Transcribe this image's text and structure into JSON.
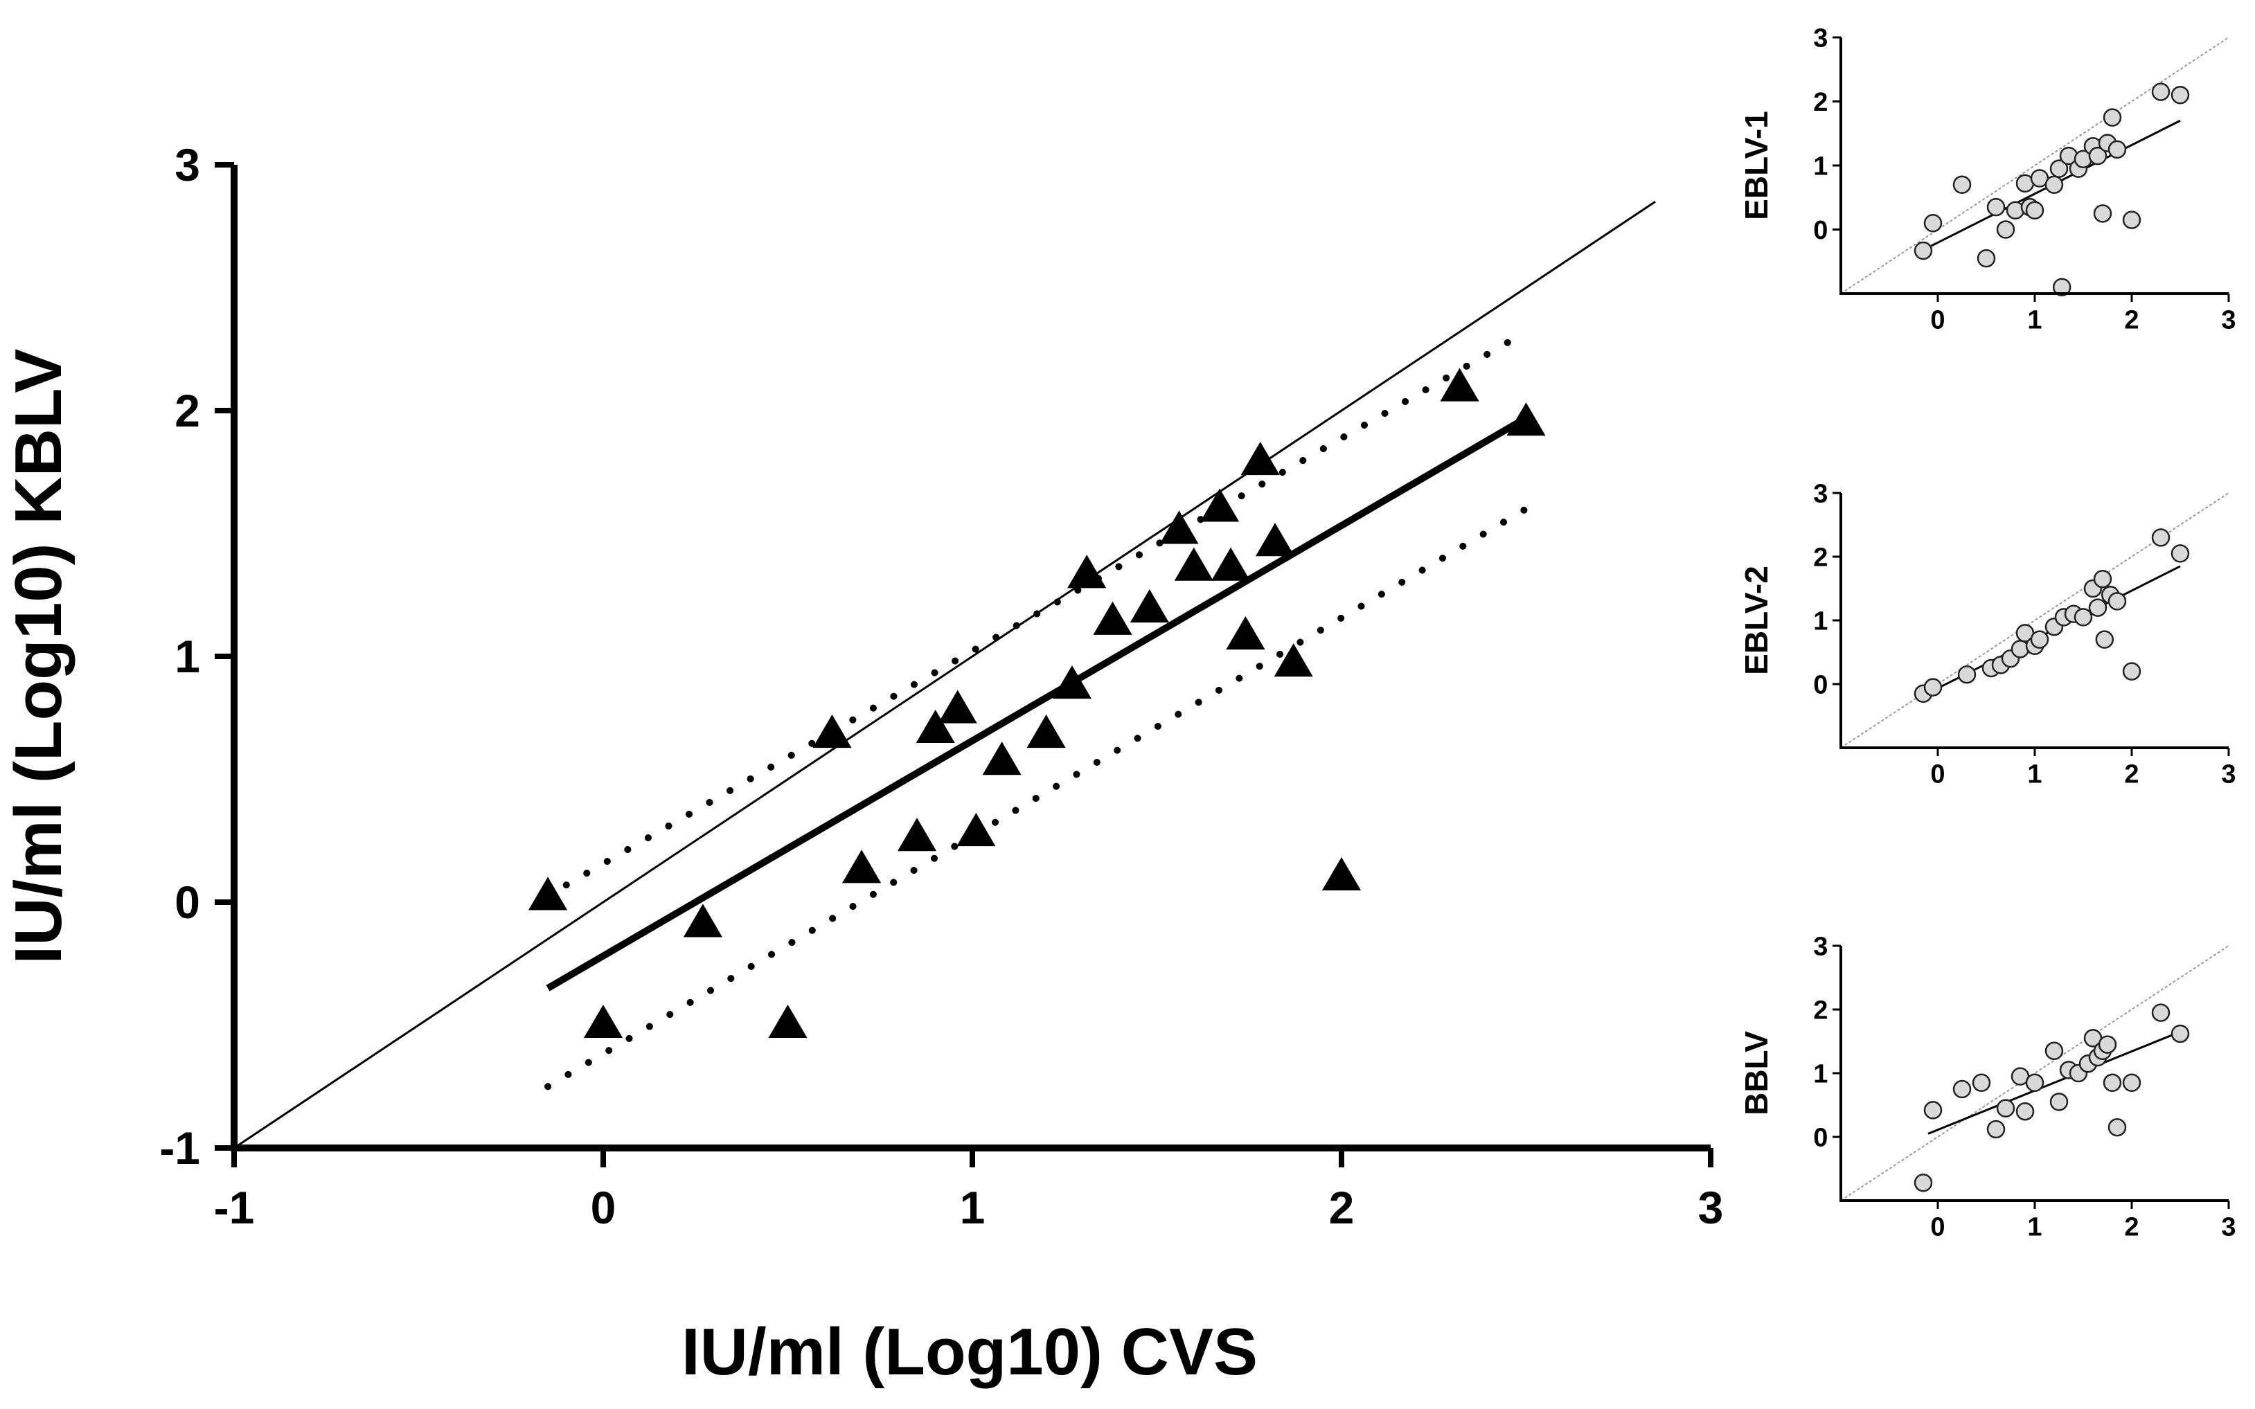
{
  "chart_data": [
    {
      "type": "scatter",
      "panel": "main",
      "xlabel": "IU/ml (Log10) CVS",
      "ylabel": "IU/ml (Log10) KBLV",
      "xlim": [
        -1,
        3
      ],
      "ylim": [
        -1,
        3
      ],
      "xticks": [
        "-1",
        "0",
        "1",
        "2",
        "3"
      ],
      "yticks": [
        "-1",
        "0",
        "1",
        "2",
        "3"
      ],
      "marker": "triangle",
      "identity_line": [
        [
          -1,
          -1
        ],
        [
          2.85,
          2.85
        ]
      ],
      "regression_line": [
        [
          -0.15,
          -0.35
        ],
        [
          2.5,
          1.97
        ]
      ],
      "confidence_upper": [
        [
          -0.1,
          0.07
        ],
        [
          2.5,
          2.32
        ]
      ],
      "confidence_lower": [
        [
          -0.15,
          -0.75
        ],
        [
          2.5,
          1.6
        ]
      ],
      "points": [
        [
          -0.15,
          0.03
        ],
        [
          0.0,
          -0.49
        ],
        [
          0.27,
          -0.08
        ],
        [
          0.5,
          -0.49
        ],
        [
          0.62,
          0.69
        ],
        [
          0.7,
          0.14
        ],
        [
          0.85,
          0.27
        ],
        [
          0.9,
          0.71
        ],
        [
          0.96,
          0.79
        ],
        [
          1.01,
          0.29
        ],
        [
          1.08,
          0.58
        ],
        [
          1.2,
          0.69
        ],
        [
          1.27,
          0.89
        ],
        [
          1.31,
          1.34
        ],
        [
          1.38,
          1.15
        ],
        [
          1.48,
          1.2
        ],
        [
          1.56,
          1.52
        ],
        [
          1.6,
          1.37
        ],
        [
          1.67,
          1.61
        ],
        [
          1.7,
          1.37
        ],
        [
          1.74,
          1.09
        ],
        [
          1.78,
          1.8
        ],
        [
          1.82,
          1.47
        ],
        [
          1.87,
          0.98
        ],
        [
          2.0,
          0.11
        ],
        [
          2.32,
          2.1
        ],
        [
          2.5,
          1.96
        ]
      ]
    },
    {
      "type": "scatter",
      "panel": "inset-1",
      "ylabel": "EBLV-1",
      "xlim": [
        -1,
        3
      ],
      "ylim": [
        -1,
        3
      ],
      "xticks": [
        "0",
        "1",
        "2",
        "3"
      ],
      "yticks": [
        "0",
        "1",
        "2",
        "3"
      ],
      "marker": "circle",
      "identity_line": [
        [
          -1,
          -1
        ],
        [
          3,
          3
        ]
      ],
      "regression_line": [
        [
          -0.1,
          -0.28
        ],
        [
          2.5,
          1.7
        ]
      ],
      "points": [
        [
          -0.15,
          -0.33
        ],
        [
          -0.05,
          0.1
        ],
        [
          0.25,
          0.7
        ],
        [
          0.5,
          -0.45
        ],
        [
          0.6,
          0.35
        ],
        [
          0.7,
          0.0
        ],
        [
          0.8,
          0.3
        ],
        [
          0.9,
          0.72
        ],
        [
          0.95,
          0.35
        ],
        [
          1.0,
          0.3
        ],
        [
          1.05,
          0.8
        ],
        [
          1.2,
          0.7
        ],
        [
          1.25,
          0.95
        ],
        [
          1.28,
          -0.9
        ],
        [
          1.35,
          1.15
        ],
        [
          1.45,
          0.95
        ],
        [
          1.5,
          1.1
        ],
        [
          1.6,
          1.3
        ],
        [
          1.65,
          1.15
        ],
        [
          1.7,
          0.25
        ],
        [
          1.75,
          1.35
        ],
        [
          1.8,
          1.75
        ],
        [
          1.85,
          1.25
        ],
        [
          2.0,
          0.15
        ],
        [
          2.3,
          2.15
        ],
        [
          2.5,
          2.1
        ]
      ]
    },
    {
      "type": "scatter",
      "panel": "inset-2",
      "ylabel": "EBLV-2",
      "xlim": [
        -1,
        3
      ],
      "ylim": [
        -1,
        3
      ],
      "xticks": [
        "0",
        "1",
        "2",
        "3"
      ],
      "yticks": [
        "0",
        "1",
        "2",
        "3"
      ],
      "marker": "circle",
      "identity_line": [
        [
          -1,
          -1
        ],
        [
          3,
          3
        ]
      ],
      "regression_line": [
        [
          -0.15,
          -0.18
        ],
        [
          2.5,
          1.85
        ]
      ],
      "points": [
        [
          -0.15,
          -0.15
        ],
        [
          -0.05,
          -0.05
        ],
        [
          0.3,
          0.15
        ],
        [
          0.55,
          0.25
        ],
        [
          0.65,
          0.3
        ],
        [
          0.75,
          0.4
        ],
        [
          0.85,
          0.55
        ],
        [
          0.9,
          0.8
        ],
        [
          1.0,
          0.6
        ],
        [
          1.05,
          0.7
        ],
        [
          1.2,
          0.9
        ],
        [
          1.3,
          1.05
        ],
        [
          1.4,
          1.1
        ],
        [
          1.5,
          1.05
        ],
        [
          1.6,
          1.5
        ],
        [
          1.65,
          1.2
        ],
        [
          1.7,
          1.65
        ],
        [
          1.72,
          0.7
        ],
        [
          1.78,
          1.4
        ],
        [
          1.85,
          1.3
        ],
        [
          2.0,
          0.2
        ],
        [
          2.3,
          2.3
        ],
        [
          2.5,
          2.05
        ]
      ]
    },
    {
      "type": "scatter",
      "panel": "inset-3",
      "ylabel": "BBLV",
      "xlim": [
        -1,
        3
      ],
      "ylim": [
        -1,
        3
      ],
      "xticks": [
        "0",
        "1",
        "2",
        "3"
      ],
      "yticks": [
        "0",
        "1",
        "2",
        "3"
      ],
      "marker": "circle",
      "identity_line": [
        [
          -1,
          -1
        ],
        [
          3,
          3
        ]
      ],
      "regression_line": [
        [
          -0.1,
          0.05
        ],
        [
          2.5,
          1.65
        ]
      ],
      "points": [
        [
          -0.15,
          -0.72
        ],
        [
          -0.05,
          0.42
        ],
        [
          0.25,
          0.75
        ],
        [
          0.45,
          0.85
        ],
        [
          0.6,
          0.12
        ],
        [
          0.7,
          0.45
        ],
        [
          0.85,
          0.95
        ],
        [
          0.9,
          0.4
        ],
        [
          1.0,
          0.85
        ],
        [
          1.2,
          1.35
        ],
        [
          1.25,
          0.55
        ],
        [
          1.35,
          1.05
        ],
        [
          1.45,
          1.0
        ],
        [
          1.55,
          1.15
        ],
        [
          1.6,
          1.55
        ],
        [
          1.65,
          1.25
        ],
        [
          1.7,
          1.35
        ],
        [
          1.75,
          1.45
        ],
        [
          1.8,
          0.85
        ],
        [
          1.85,
          0.15
        ],
        [
          2.0,
          0.85
        ],
        [
          2.3,
          1.95
        ],
        [
          2.5,
          1.62
        ]
      ]
    }
  ]
}
